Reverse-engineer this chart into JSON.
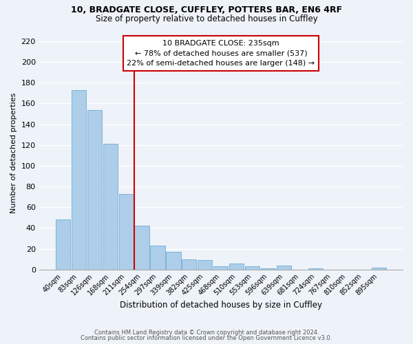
{
  "title": "10, BRADGATE CLOSE, CUFFLEY, POTTERS BAR, EN6 4RF",
  "subtitle": "Size of property relative to detached houses in Cuffley",
  "xlabel": "Distribution of detached houses by size in Cuffley",
  "ylabel": "Number of detached properties",
  "bar_color": "#aecde8",
  "bar_edge_color": "#6aaed6",
  "categories": [
    "40sqm",
    "83sqm",
    "126sqm",
    "168sqm",
    "211sqm",
    "254sqm",
    "297sqm",
    "339sqm",
    "382sqm",
    "425sqm",
    "468sqm",
    "510sqm",
    "553sqm",
    "596sqm",
    "639sqm",
    "681sqm",
    "724sqm",
    "767sqm",
    "810sqm",
    "852sqm",
    "895sqm"
  ],
  "values": [
    48,
    173,
    154,
    121,
    73,
    42,
    23,
    17,
    10,
    9,
    3,
    6,
    3,
    1,
    4,
    0,
    1,
    0,
    0,
    0,
    2
  ],
  "vline_color": "#cc0000",
  "annotation_title": "10 BRADGATE CLOSE: 235sqm",
  "annotation_line1": "← 78% of detached houses are smaller (537)",
  "annotation_line2": "22% of semi-detached houses are larger (148) →",
  "annotation_box_color": "#ffffff",
  "annotation_box_edge": "#cc0000",
  "ylim": [
    0,
    225
  ],
  "yticks": [
    0,
    20,
    40,
    60,
    80,
    100,
    120,
    140,
    160,
    180,
    200,
    220
  ],
  "footer_line1": "Contains HM Land Registry data © Crown copyright and database right 2024.",
  "footer_line2": "Contains public sector information licensed under the Open Government Licence v3.0.",
  "background_color": "#eef2f9",
  "grid_color": "#ffffff"
}
